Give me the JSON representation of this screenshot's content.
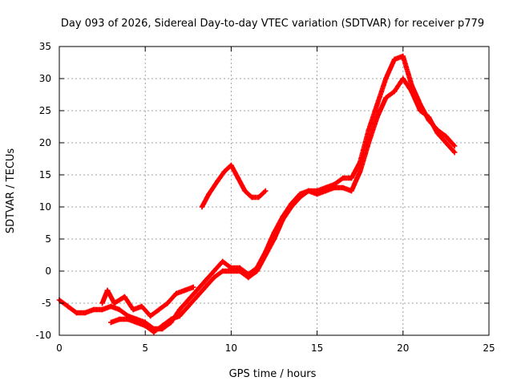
{
  "chart_data": {
    "type": "scatter",
    "title": "Day 093 of 2026, Sidereal Day-to-day VTEC variation (SDTVAR) for receiver p779",
    "xlabel": "GPS time / hours",
    "ylabel": "SDTVAR / TECUs",
    "xlim": [
      0,
      25
    ],
    "ylim": [
      -10,
      35
    ],
    "xticks": [
      0,
      5,
      10,
      15,
      20,
      25
    ],
    "yticks": [
      -10,
      -5,
      0,
      5,
      10,
      15,
      20,
      25,
      30,
      35
    ],
    "grid": true,
    "marker": "plus",
    "series": [
      {
        "name": "main-track",
        "color": "#ff0000",
        "points": [
          [
            0,
            -4.5
          ],
          [
            0.5,
            -5.5
          ],
          [
            1,
            -6.5
          ],
          [
            1.5,
            -6.5
          ],
          [
            2,
            -6
          ],
          [
            2.5,
            -6
          ],
          [
            3,
            -5.5
          ],
          [
            3.5,
            -6
          ],
          [
            4,
            -7
          ],
          [
            4.5,
            -7.5
          ],
          [
            5,
            -8
          ],
          [
            5.5,
            -9
          ],
          [
            6,
            -9
          ],
          [
            6.5,
            -8
          ],
          [
            7,
            -6
          ],
          [
            7.5,
            -4.5
          ],
          [
            8,
            -3
          ],
          [
            8.5,
            -1.5
          ],
          [
            9,
            0
          ],
          [
            9.5,
            1.5
          ],
          [
            10,
            0.5
          ],
          [
            10.5,
            0.5
          ],
          [
            11,
            -0.5
          ],
          [
            11.5,
            0.5
          ],
          [
            12,
            3
          ],
          [
            12.5,
            6
          ],
          [
            13,
            8.5
          ],
          [
            13.5,
            10.5
          ],
          [
            14,
            12
          ],
          [
            14.5,
            12.5
          ],
          [
            15,
            12.5
          ],
          [
            15.5,
            13
          ],
          [
            16,
            13.5
          ],
          [
            16.5,
            14.5
          ],
          [
            17,
            14.5
          ],
          [
            17.5,
            17
          ],
          [
            18,
            22
          ],
          [
            18.5,
            26
          ],
          [
            19,
            30
          ],
          [
            19.5,
            33
          ],
          [
            20,
            33.5
          ],
          [
            20.5,
            29
          ],
          [
            21,
            26
          ],
          [
            21.5,
            23.5
          ],
          [
            22,
            22
          ],
          [
            22.5,
            21
          ],
          [
            23,
            19.5
          ]
        ]
      },
      {
        "name": "offset-track",
        "color": "#ff0000",
        "points": [
          [
            3,
            -8
          ],
          [
            3.5,
            -7.5
          ],
          [
            4,
            -7.5
          ],
          [
            4.5,
            -8
          ],
          [
            5,
            -8.5
          ],
          [
            5.5,
            -9.5
          ],
          [
            6,
            -8.5
          ],
          [
            6.5,
            -7.5
          ],
          [
            7,
            -7
          ],
          [
            7.5,
            -5.5
          ],
          [
            8,
            -4
          ],
          [
            8.5,
            -2.5
          ],
          [
            9,
            -1
          ],
          [
            9.5,
            0
          ],
          [
            10,
            0
          ],
          [
            10.5,
            0
          ],
          [
            11,
            -1
          ],
          [
            11.5,
            0
          ],
          [
            12,
            2.5
          ],
          [
            12.5,
            5
          ],
          [
            13,
            8
          ],
          [
            13.5,
            10
          ],
          [
            14,
            11.5
          ],
          [
            14.5,
            12.5
          ],
          [
            15,
            12
          ],
          [
            15.5,
            12.5
          ],
          [
            16,
            13
          ],
          [
            16.5,
            13
          ],
          [
            17,
            12.5
          ],
          [
            17.5,
            15.5
          ],
          [
            18,
            20
          ],
          [
            18.5,
            24
          ],
          [
            19,
            27
          ],
          [
            19.5,
            28
          ],
          [
            20,
            30
          ],
          [
            20.5,
            28
          ],
          [
            21,
            25
          ],
          [
            21.5,
            24
          ],
          [
            22,
            21.5
          ],
          [
            22.5,
            20
          ],
          [
            23,
            18.5
          ]
        ]
      },
      {
        "name": "upper-track",
        "color": "#ff0000",
        "points": [
          [
            8.3,
            10
          ],
          [
            8.7,
            12
          ],
          [
            9.2,
            14
          ],
          [
            9.6,
            15.5
          ],
          [
            10,
            16.5
          ],
          [
            10.4,
            14.5
          ],
          [
            10.8,
            12.5
          ],
          [
            11.2,
            11.5
          ],
          [
            11.6,
            11.5
          ],
          [
            12,
            12.5
          ]
        ]
      },
      {
        "name": "early-track",
        "color": "#ff0000",
        "points": [
          [
            2.5,
            -5
          ],
          [
            2.8,
            -3
          ],
          [
            3.2,
            -5
          ],
          [
            3.8,
            -4
          ],
          [
            4.3,
            -6
          ],
          [
            4.8,
            -5.5
          ],
          [
            5.3,
            -7
          ],
          [
            5.8,
            -6
          ],
          [
            6.3,
            -5
          ],
          [
            6.8,
            -3.5
          ],
          [
            7.3,
            -3
          ],
          [
            7.8,
            -2.5
          ]
        ]
      }
    ]
  }
}
